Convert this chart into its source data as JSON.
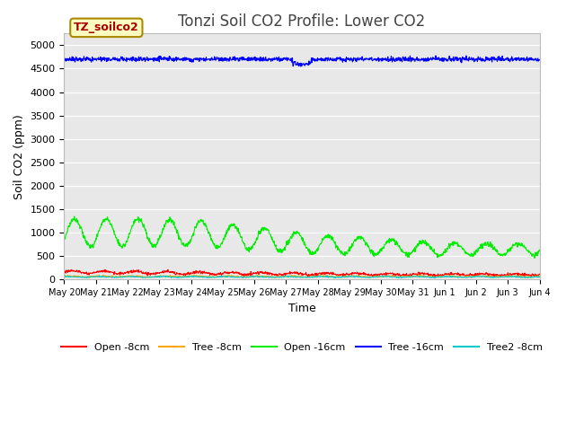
{
  "title": "Tonzi Soil CO2 Profile: Lower CO2",
  "xlabel": "Time",
  "ylabel": "Soil CO2 (ppm)",
  "watermark_text": "TZ_soilco2",
  "ylim": [
    0,
    5250
  ],
  "yticks": [
    0,
    500,
    1000,
    1500,
    2000,
    2500,
    3000,
    3500,
    4000,
    4500,
    5000
  ],
  "bg_color": "#e8e8e8",
  "fig_bg": "#ffffff",
  "series": {
    "open_8cm": {
      "color": "#ff0000",
      "label": "Open -8cm"
    },
    "tree_8cm": {
      "color": "#ffa500",
      "label": "Tree -8cm"
    },
    "open_16cm": {
      "color": "#00ee00",
      "label": "Open -16cm"
    },
    "tree_16cm": {
      "color": "#0000ff",
      "label": "Tree -16cm"
    },
    "tree2_8cm": {
      "color": "#00cccc",
      "label": "Tree2 -8cm"
    }
  },
  "n_days": 15,
  "samples_per_day": 96,
  "xtick_labels": [
    "May 20",
    "May 21",
    "May 22",
    "May 23",
    "May 24",
    "May 25",
    "May 26",
    "May 27",
    "May 28",
    "May 29",
    "May 30",
    "May 31",
    "Jun 1",
    "Jun 2",
    "Jun 3",
    "Jun 4"
  ],
  "title_fontsize": 12,
  "label_fontsize": 9,
  "tick_fontsize": 8,
  "legend_fontsize": 8,
  "wm_fontsize": 9,
  "wm_color": "#aa0000",
  "wm_bg": "#ffffc0",
  "wm_edge": "#aa8800"
}
